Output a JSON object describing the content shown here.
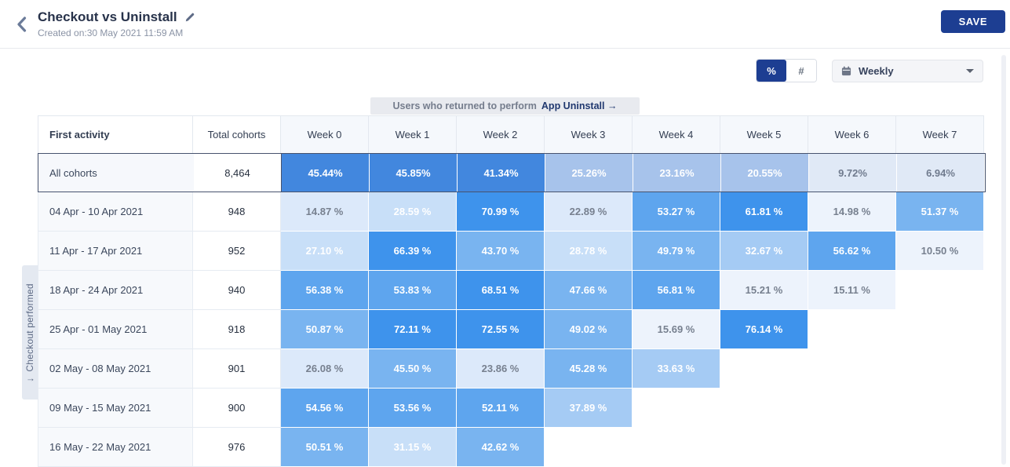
{
  "header": {
    "title": "Checkout vs Uninstall",
    "created": "Created on:30 May 2021 11:59 AM",
    "save_label": "SAVE"
  },
  "controls": {
    "percent_label": "%",
    "count_label": "#",
    "granularity": "Weekly"
  },
  "banner": {
    "prefix": "Users who returned to perform",
    "event": "App Uninstall",
    "arrow": "→"
  },
  "left_axis": {
    "label": "Checkout performed",
    "arrow": "↓"
  },
  "colors": {
    "accent_navy": "#1d3e92",
    "heat_strong": "#3E93EC",
    "heat_light": "#EDF3FC"
  },
  "palette": {
    "p6": {
      "bg": "#3E93EC",
      "fg": "#ffffff"
    },
    "p5": {
      "bg": "#5EA5EE",
      "fg": "#ffffff"
    },
    "p4": {
      "bg": "#79B4F0",
      "fg": "#ffffff"
    },
    "p3": {
      "bg": "#A5CBF4",
      "fg": "#ffffff"
    },
    "p2": {
      "bg": "#C8DFF8",
      "fg": "#ffffff"
    },
    "p1": {
      "bg": "#DCE9FA",
      "fg": "#77808f"
    },
    "p0": {
      "bg": "#EDF3FC",
      "fg": "#77808f"
    },
    "a6": {
      "bg": "#4287DE",
      "fg": "#ffffff"
    },
    "a3": {
      "bg": "#A7C3EB",
      "fg": "#ffffff"
    },
    "a1": {
      "bg": "#E0E9F6",
      "fg": "#707b8e"
    }
  },
  "table": {
    "col_first": "First activity",
    "col_total": "Total cohorts",
    "weeks": [
      "Week 0",
      "Week 1",
      "Week 2",
      "Week 3",
      "Week 4",
      "Week 5",
      "Week 6",
      "Week 7"
    ],
    "all_row": {
      "label": "All cohorts",
      "total": "8,464",
      "cells": [
        {
          "v": "45.44%",
          "t": "a6"
        },
        {
          "v": "45.85%",
          "t": "a6"
        },
        {
          "v": "41.34%",
          "t": "a6"
        },
        {
          "v": "25.26%",
          "t": "a3"
        },
        {
          "v": "23.16%",
          "t": "a3"
        },
        {
          "v": "20.55%",
          "t": "a3"
        },
        {
          "v": "9.72%",
          "t": "a1"
        },
        {
          "v": "6.94%",
          "t": "a1"
        }
      ]
    },
    "rows": [
      {
        "label": "04 Apr - 10 Apr 2021",
        "total": "948",
        "cells": [
          {
            "v": "14.87 %",
            "t": "p1"
          },
          {
            "v": "28.59 %",
            "t": "p2"
          },
          {
            "v": "70.99 %",
            "t": "p6"
          },
          {
            "v": "22.89 %",
            "t": "p1"
          },
          {
            "v": "53.27 %",
            "t": "p5"
          },
          {
            "v": "61.81 %",
            "t": "p6"
          },
          {
            "v": "14.98 %",
            "t": "p0"
          },
          {
            "v": "51.37 %",
            "t": "p4"
          }
        ]
      },
      {
        "label": "11 Apr - 17 Apr 2021",
        "total": "952",
        "cells": [
          {
            "v": "27.10 %",
            "t": "p2"
          },
          {
            "v": "66.39 %",
            "t": "p6"
          },
          {
            "v": "43.70 %",
            "t": "p4"
          },
          {
            "v": "28.78 %",
            "t": "p2"
          },
          {
            "v": "49.79 %",
            "t": "p4"
          },
          {
            "v": "32.67 %",
            "t": "p3"
          },
          {
            "v": "56.62 %",
            "t": "p5"
          },
          {
            "v": "10.50 %",
            "t": "p0"
          }
        ]
      },
      {
        "label": "18 Apr - 24 Apr 2021",
        "total": "940",
        "cells": [
          {
            "v": "56.38 %",
            "t": "p5"
          },
          {
            "v": "53.83 %",
            "t": "p5"
          },
          {
            "v": "68.51 %",
            "t": "p6"
          },
          {
            "v": "47.66 %",
            "t": "p4"
          },
          {
            "v": "56.81 %",
            "t": "p5"
          },
          {
            "v": "15.21 %",
            "t": "p0"
          },
          {
            "v": "15.11 %",
            "t": "p0"
          },
          null
        ]
      },
      {
        "label": "25 Apr - 01 May 2021",
        "total": "918",
        "cells": [
          {
            "v": "50.87 %",
            "t": "p4"
          },
          {
            "v": "72.11 %",
            "t": "p6"
          },
          {
            "v": "72.55 %",
            "t": "p6"
          },
          {
            "v": "49.02 %",
            "t": "p4"
          },
          {
            "v": "15.69 %",
            "t": "p0"
          },
          {
            "v": "76.14 %",
            "t": "p6"
          },
          null,
          null
        ]
      },
      {
        "label": "02 May - 08 May 2021",
        "total": "901",
        "cells": [
          {
            "v": "26.08 %",
            "t": "p1"
          },
          {
            "v": "45.50 %",
            "t": "p4"
          },
          {
            "v": "23.86 %",
            "t": "p1"
          },
          {
            "v": "45.28 %",
            "t": "p4"
          },
          {
            "v": "33.63 %",
            "t": "p3"
          },
          null,
          null,
          null
        ]
      },
      {
        "label": "09 May - 15 May 2021",
        "total": "900",
        "cells": [
          {
            "v": "54.56 %",
            "t": "p5"
          },
          {
            "v": "53.56 %",
            "t": "p5"
          },
          {
            "v": "52.11 %",
            "t": "p5"
          },
          {
            "v": "37.89 %",
            "t": "p3"
          },
          null,
          null,
          null,
          null
        ]
      },
      {
        "label": "16 May - 22 May 2021",
        "total": "976",
        "cells": [
          {
            "v": "50.51 %",
            "t": "p4"
          },
          {
            "v": "31.15 %",
            "t": "p2"
          },
          {
            "v": "42.62 %",
            "t": "p4"
          },
          null,
          null,
          null,
          null,
          null
        ]
      }
    ]
  }
}
